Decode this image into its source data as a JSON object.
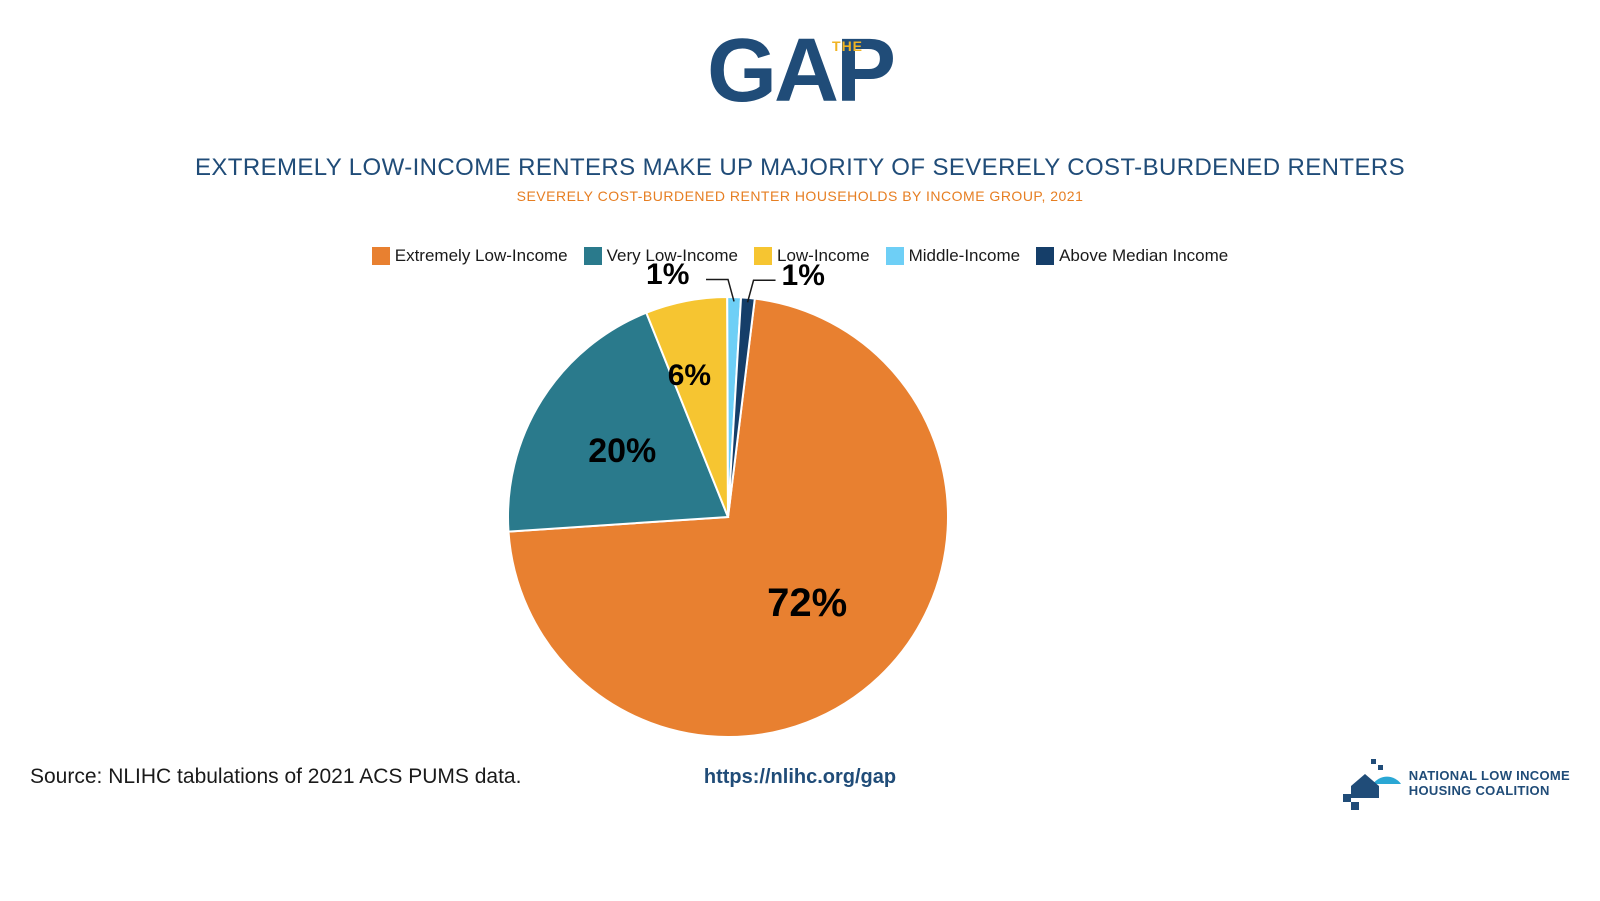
{
  "logo": {
    "word": "GAP",
    "tag": "THE",
    "word_color": "#204c78",
    "tag_color": "#f0b323"
  },
  "title": {
    "text": "EXTREMELY LOW-INCOME RENTERS MAKE UP MAJORITY OF SEVERELY COST-BURDENED RENTERS",
    "color": "#204c78",
    "fontsize": 24
  },
  "subtitle": {
    "text": "SEVERELY COST-BURDENED RENTER HOUSEHOLDS BY INCOME GROUP, 2021",
    "color": "#e67e22",
    "fontsize": 14
  },
  "chart": {
    "type": "pie",
    "background_color": "#ffffff",
    "stroke_color": "#ffffff",
    "stroke_width": 2,
    "start_angle_deg": 7,
    "slices": [
      {
        "label": "Extremely Low-Income",
        "value": 72,
        "display": "72%",
        "color": "#e88030",
        "label_fontsize": 40,
        "label_pos": "inside"
      },
      {
        "label": "Very Low-Income",
        "value": 20,
        "display": "20%",
        "color": "#2a7a8c",
        "label_fontsize": 34,
        "label_pos": "inside"
      },
      {
        "label": "Low-Income",
        "value": 6,
        "display": "6%",
        "color": "#f6c531",
        "label_fontsize": 30,
        "label_pos": "inside"
      },
      {
        "label": "Middle-Income",
        "value": 1,
        "display": "1%",
        "color": "#6ecff6",
        "label_fontsize": 30,
        "label_pos": "outside-left"
      },
      {
        "label": "Above Median Income",
        "value": 1,
        "display": "1%",
        "color": "#153e69",
        "label_fontsize": 30,
        "label_pos": "outside-right"
      }
    ]
  },
  "legend": {
    "fontsize": 17,
    "text_color": "#1a1a1a"
  },
  "source": {
    "text": "Source: NLIHC tabulations of 2021 ACS PUMS data.",
    "color": "#1a1a1a",
    "fontsize": 21
  },
  "url": {
    "text": "https://nlihc.org/gap",
    "color": "#204c78",
    "fontsize": 20
  },
  "org": {
    "line1": "NATIONAL LOW INCOME",
    "line2": "HOUSING COALITION",
    "text_color": "#204c78",
    "icon_primary": "#204c78",
    "icon_accent": "#2aa7d4"
  }
}
